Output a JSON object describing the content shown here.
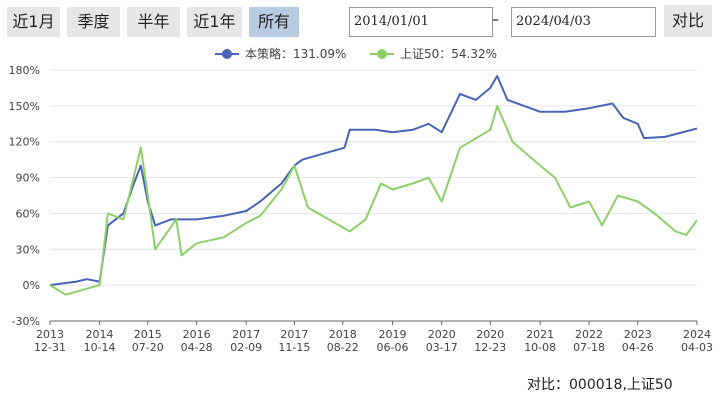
{
  "controls": {
    "ranges": [
      "近1月",
      "季度",
      "半年",
      "近1年",
      "所有"
    ],
    "active": 4,
    "start": "2014/01/01",
    "dash": "–",
    "end": "2024/04/03",
    "compare": "对比"
  },
  "footer": "对比：000018,上证50",
  "chart_data": {
    "type": "line",
    "xlim": [
      "2013-12-31",
      "2024-04-03"
    ],
    "xticks": [
      {
        "value": "2013-12-31",
        "label": [
          "2013",
          "12-31"
        ]
      },
      {
        "value": "2014-10-14",
        "label": [
          "2014",
          "10-14"
        ]
      },
      {
        "value": "2015-07-20",
        "label": [
          "2015",
          "07-20"
        ]
      },
      {
        "value": "2016-04-28",
        "label": [
          "2016",
          "04-28"
        ]
      },
      {
        "value": "2017-02-09",
        "label": [
          "2017",
          "02-09"
        ]
      },
      {
        "value": "2017-11-15",
        "label": [
          "2017",
          "11-15"
        ]
      },
      {
        "value": "2018-08-22",
        "label": [
          "2018",
          "08-22"
        ]
      },
      {
        "value": "2019-06-06",
        "label": [
          "2019",
          "06-06"
        ]
      },
      {
        "value": "2020-03-17",
        "label": [
          "2020",
          "03-17"
        ]
      },
      {
        "value": "2020-12-23",
        "label": [
          "2020",
          "12-23"
        ]
      },
      {
        "value": "2021-10-08",
        "label": [
          "2021",
          "10-08"
        ]
      },
      {
        "value": "2022-07-18",
        "label": [
          "2022",
          "07-18"
        ]
      },
      {
        "value": "2023-04-26",
        "label": [
          "2023",
          "04-26"
        ]
      },
      {
        "value": "2024-04-03",
        "label": [
          "2024",
          "04-03"
        ]
      }
    ],
    "ylim": [
      -30,
      180
    ],
    "yticks": [
      {
        "value": -30,
        "label": "-30%"
      },
      {
        "value": 0,
        "label": "0%"
      },
      {
        "value": 30,
        "label": "30%"
      },
      {
        "value": 60,
        "label": "60%"
      },
      {
        "value": 90,
        "label": "90%"
      },
      {
        "value": 120,
        "label": "120%"
      },
      {
        "value": 150,
        "label": "150%"
      },
      {
        "value": 180,
        "label": "180%"
      }
    ],
    "grid": true,
    "series": [
      {
        "name": "本策略：131.09%",
        "color": "#4a63b8",
        "x": [
          "2013-12-31",
          "2014-06-01",
          "2014-08-01",
          "2014-10-14",
          "2014-12-01",
          "2015-03-01",
          "2015-05-01",
          "2015-06-10",
          "2015-07-20",
          "2015-09-01",
          "2015-12-01",
          "2016-04-28",
          "2016-10-01",
          "2017-02-09",
          "2017-05-01",
          "2017-09-01",
          "2017-11-15",
          "2018-01-01",
          "2018-05-01",
          "2018-09-01",
          "2018-10-01",
          "2019-03-01",
          "2019-06-06",
          "2019-10-01",
          "2020-01-01",
          "2020-03-17",
          "2020-07-01",
          "2020-10-01",
          "2020-12-23",
          "2021-02-01",
          "2021-04-01",
          "2021-10-08",
          "2022-03-01",
          "2022-07-18",
          "2022-12-01",
          "2023-02-01",
          "2023-04-26",
          "2023-06-01",
          "2023-10-01",
          "2024-04-03"
        ],
        "values": [
          0,
          3,
          5,
          3,
          50,
          60,
          85,
          100,
          70,
          50,
          55,
          55,
          58,
          62,
          70,
          85,
          100,
          105,
          110,
          115,
          130,
          130,
          128,
          130,
          135,
          128,
          160,
          155,
          165,
          175,
          155,
          145,
          145,
          148,
          152,
          140,
          135,
          123,
          124,
          131.09
        ]
      },
      {
        "name": "上证50：54.32%",
        "color": "#8fcf6a",
        "x": [
          "2013-12-31",
          "2014-04-01",
          "2014-08-01",
          "2014-10-14",
          "2014-12-01",
          "2015-03-01",
          "2015-06-10",
          "2015-07-20",
          "2015-09-01",
          "2016-01-01",
          "2016-02-01",
          "2016-04-28",
          "2016-10-01",
          "2017-02-09",
          "2017-05-01",
          "2017-09-01",
          "2017-11-15",
          "2018-02-01",
          "2018-06-01",
          "2018-10-01",
          "2019-01-01",
          "2019-04-01",
          "2019-06-06",
          "2019-10-01",
          "2020-01-01",
          "2020-03-17",
          "2020-07-01",
          "2020-12-23",
          "2021-02-01",
          "2021-05-01",
          "2021-10-08",
          "2022-01-01",
          "2022-04-01",
          "2022-07-18",
          "2022-10-01",
          "2023-01-01",
          "2023-04-26",
          "2023-08-01",
          "2023-12-01",
          "2024-02-01",
          "2024-04-03"
        ],
        "values": [
          0,
          -8,
          -3,
          0,
          60,
          55,
          115,
          75,
          30,
          55,
          25,
          35,
          40,
          52,
          58,
          80,
          100,
          65,
          55,
          45,
          55,
          85,
          80,
          85,
          90,
          70,
          115,
          130,
          150,
          120,
          100,
          90,
          65,
          70,
          50,
          75,
          70,
          60,
          45,
          42,
          54.32
        ]
      }
    ]
  }
}
